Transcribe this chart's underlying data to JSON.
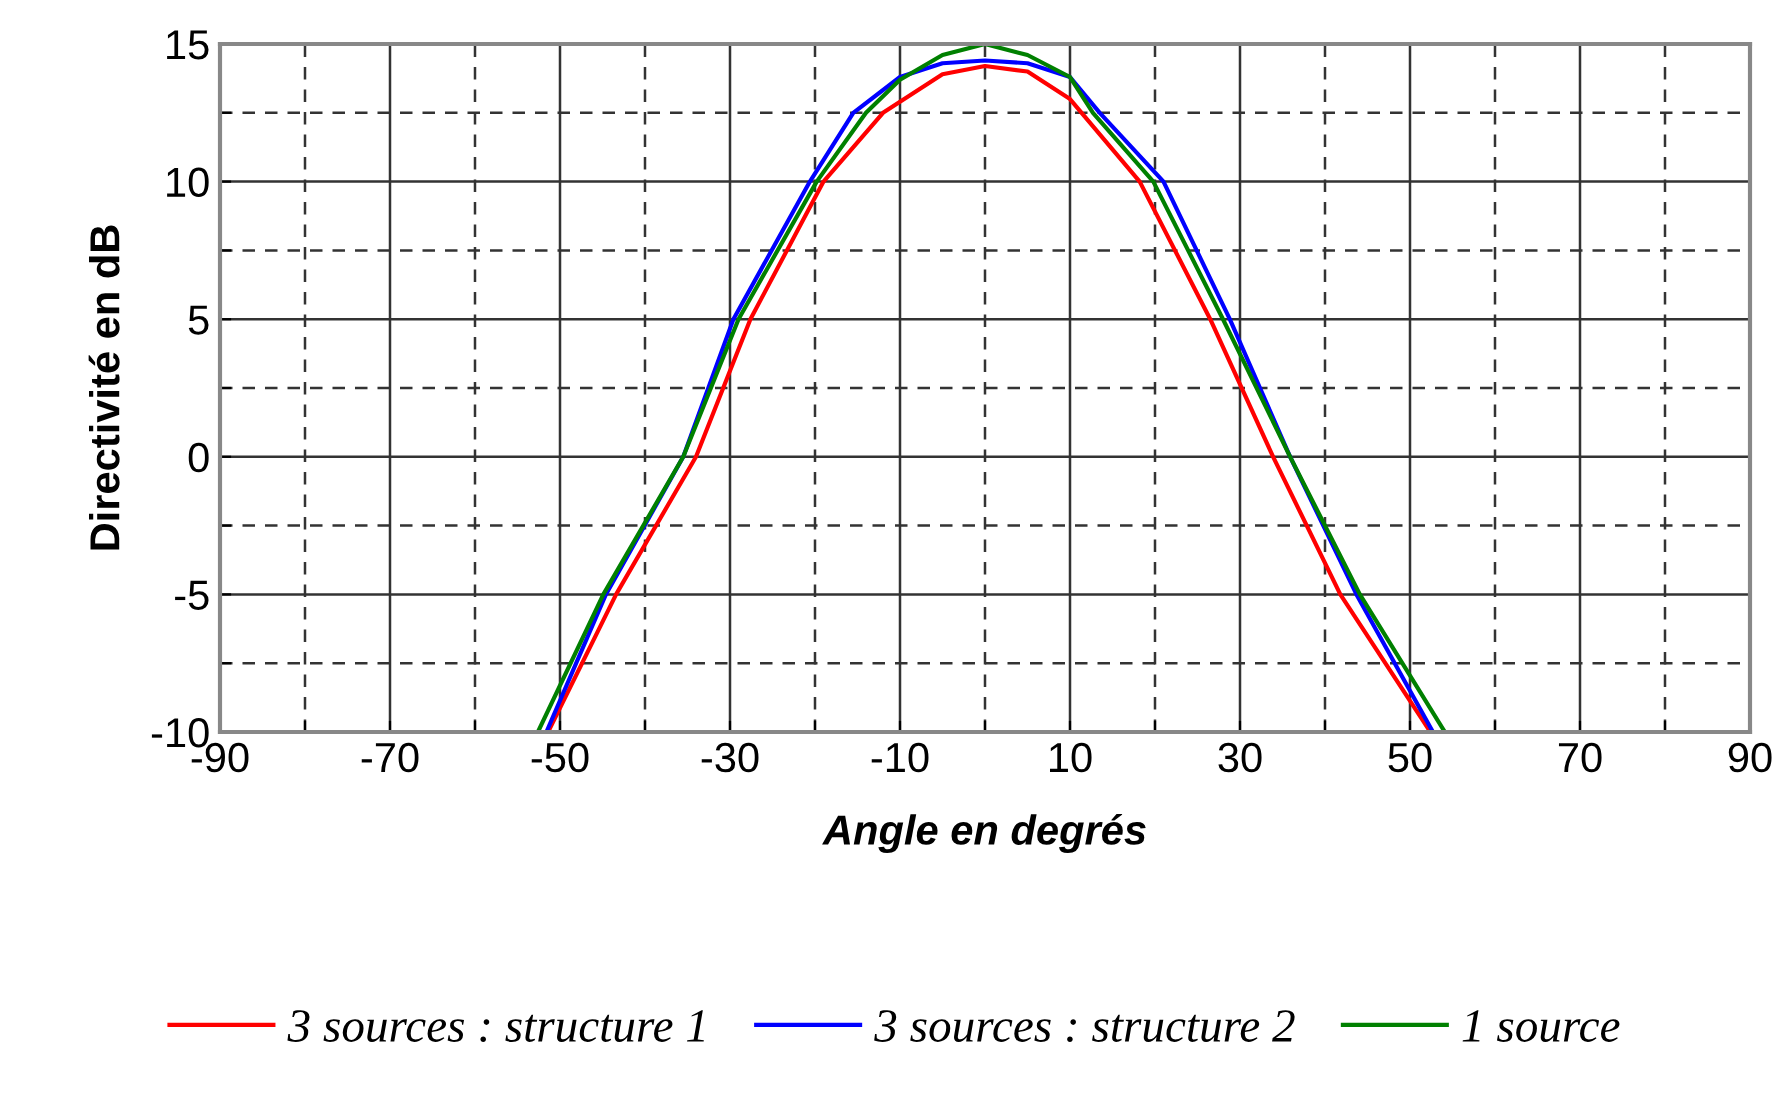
{
  "chart_data": {
    "type": "line",
    "xlabel": "Angle en degrés",
    "ylabel": "Directivité en dB",
    "xlim": [
      -90,
      90
    ],
    "xticks": [
      -90,
      {
        "value": -80,
        "label": null
      },
      -70,
      {
        "value": -60,
        "label": null
      },
      -50,
      {
        "value": -40,
        "label": null
      },
      -30,
      {
        "value": -20,
        "label": null
      },
      -10,
      {
        "value": 0,
        "label": null
      },
      10,
      {
        "value": 20,
        "label": null
      },
      30,
      {
        "value": 40,
        "label": null
      },
      50,
      {
        "value": 60,
        "label": null
      },
      70,
      {
        "value": 80,
        "label": null
      },
      90
    ],
    "ylim": [
      -10,
      15
    ],
    "yticks": [
      -10,
      {
        "value": -7.5,
        "label": null
      },
      -5,
      {
        "value": -2.5,
        "label": null
      },
      0,
      {
        "value": 2.5,
        "label": null
      },
      5,
      {
        "value": 7.5,
        "label": null
      },
      10,
      {
        "value": 12.5,
        "label": null
      },
      15
    ],
    "grid": true,
    "legend": "bottom",
    "marker": "none",
    "line_style": "solid",
    "series": [
      {
        "name": "3 sources : structure 1",
        "color": "#ff0000",
        "x": [
          -51.4,
          -43.4,
          -34,
          -27.6,
          -19,
          -12,
          -5,
          0,
          5,
          10,
          18.2,
          26.5,
          33.9,
          41.8,
          52.4
        ],
        "values": [
          -10,
          -5,
          0,
          5,
          10,
          12.5,
          13.9,
          14.2,
          14,
          13,
          10,
          5,
          0,
          -5,
          -10
        ]
      },
      {
        "name": "3 sources : structure 2",
        "color": "#0000ff",
        "x": [
          -51.6,
          -44.6,
          -35.5,
          -29.6,
          -20.6,
          -15.5,
          -10,
          -5,
          0,
          5,
          10,
          13.5,
          21,
          28.8,
          35.9,
          43.7,
          52.7
        ],
        "values": [
          -10,
          -5,
          0,
          5,
          10,
          12.5,
          13.8,
          14.3,
          14.4,
          14.3,
          13.8,
          12.5,
          10,
          5,
          0,
          -5,
          -10
        ]
      },
      {
        "name": "1 source",
        "color": "#008000",
        "x": [
          -52.6,
          -44.9,
          -35.5,
          -29,
          -19.8,
          -14,
          -10,
          -5,
          0,
          5,
          10,
          12.7,
          19.8,
          28,
          35.9,
          44.1,
          54.1
        ],
        "values": [
          -10,
          -5,
          0,
          5,
          10,
          12.5,
          13.7,
          14.6,
          15,
          14.6,
          13.8,
          12.5,
          10,
          5,
          0,
          -5,
          -10
        ]
      }
    ]
  }
}
